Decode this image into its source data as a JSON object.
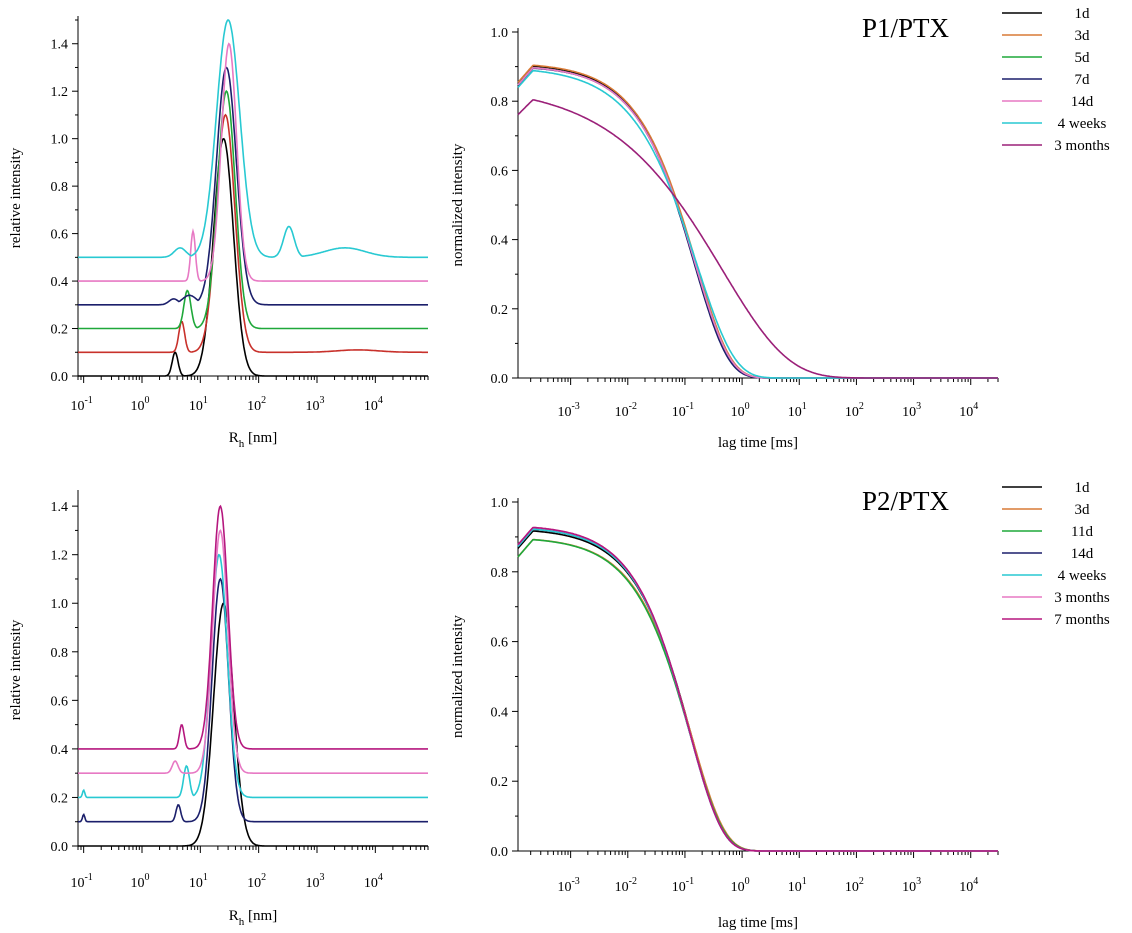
{
  "chart_data": [
    {
      "id": "p1-dist",
      "type": "line",
      "title": "",
      "xlabel": "R",
      "xlabel_sub": "h",
      "xlabel_unit": " [nm]",
      "ylabel": "relative intensity",
      "x_scale": "log",
      "xlim": [
        0.08,
        80000
      ],
      "ylim": [
        0,
        1.5
      ],
      "xticks": [
        {
          "base": "10",
          "exp": "-1"
        },
        {
          "base": "10",
          "exp": "0"
        },
        {
          "base": "10",
          "exp": "1"
        },
        {
          "base": "10",
          "exp": "2"
        },
        {
          "base": "10",
          "exp": "3"
        },
        {
          "base": "10",
          "exp": "4"
        }
      ],
      "yticks": [
        "0.0",
        "0.2",
        "0.4",
        "0.6",
        "0.8",
        "1.0",
        "1.2",
        "1.4"
      ],
      "series": [
        {
          "color": "#000000",
          "baseline": 0.0,
          "peaks": [
            {
              "x": 3.7,
              "w": 0.05,
              "h": 0.1
            },
            {
              "x": 25,
              "w": 0.17,
              "h": 1.0
            }
          ]
        },
        {
          "color": "#c8312b",
          "baseline": 0.1,
          "peaks": [
            {
              "x": 4.8,
              "w": 0.05,
              "h": 0.13
            },
            {
              "x": 27,
              "w": 0.16,
              "h": 1.0
            },
            {
              "x": 5000,
              "w": 0.35,
              "h": 0.01
            }
          ]
        },
        {
          "color": "#1fa83a",
          "baseline": 0.2,
          "peaks": [
            {
              "x": 6.0,
              "w": 0.06,
              "h": 0.16
            },
            {
              "x": 28,
              "w": 0.15,
              "h": 1.0
            }
          ]
        },
        {
          "color": "#1b1f6b",
          "baseline": 0.3,
          "peaks": [
            {
              "x": 3.5,
              "w": 0.08,
              "h": 0.025
            },
            {
              "x": 6.5,
              "w": 0.12,
              "h": 0.04
            },
            {
              "x": 28,
              "w": 0.17,
              "h": 1.0
            }
          ]
        },
        {
          "color": "#e779c4",
          "baseline": 0.4,
          "peaks": [
            {
              "x": 7.5,
              "w": 0.04,
              "h": 0.21
            },
            {
              "x": 31,
              "w": 0.13,
              "h": 1.0
            }
          ]
        },
        {
          "color": "#28c9d2",
          "baseline": 0.5,
          "peaks": [
            {
              "x": 4.5,
              "w": 0.1,
              "h": 0.04
            },
            {
              "x": 30,
              "w": 0.2,
              "h": 1.0
            },
            {
              "x": 330,
              "w": 0.09,
              "h": 0.13
            },
            {
              "x": 3000,
              "w": 0.35,
              "h": 0.04
            }
          ]
        }
      ]
    },
    {
      "id": "p1-corr",
      "type": "line",
      "title": "P1/PTX",
      "xlabel": "lag time [ms]",
      "ylabel": "normalized intensity",
      "x_scale": "log",
      "xlim": [
        0.00012,
        30000
      ],
      "ylim": [
        0,
        1.0
      ],
      "xticks": [
        {
          "base": "10",
          "exp": "-3"
        },
        {
          "base": "10",
          "exp": "-2"
        },
        {
          "base": "10",
          "exp": "-1"
        },
        {
          "base": "10",
          "exp": "0"
        },
        {
          "base": "10",
          "exp": "1"
        },
        {
          "base": "10",
          "exp": "2"
        },
        {
          "base": "10",
          "exp": "3"
        },
        {
          "base": "10",
          "exp": "4"
        }
      ],
      "yticks": [
        "0.0",
        "0.2",
        "0.4",
        "0.6",
        "0.8",
        "1.0"
      ],
      "legend": "top-right",
      "series": [
        {
          "name": "1d",
          "color": "#000000",
          "a": 0.91,
          "tau": 0.15,
          "beta": 0.72
        },
        {
          "name": "3d",
          "color": "#d87a36",
          "a": 0.912,
          "tau": 0.155,
          "beta": 0.72
        },
        {
          "name": "5d",
          "color": "#1fa83a",
          "a": 0.905,
          "tau": 0.15,
          "beta": 0.72
        },
        {
          "name": "7d",
          "color": "#1b1f6b",
          "a": 0.903,
          "tau": 0.145,
          "beta": 0.74
        },
        {
          "name": "14d",
          "color": "#e779c4",
          "a": 0.905,
          "tau": 0.15,
          "beta": 0.72
        },
        {
          "name": "4 weeks",
          "color": "#28c9d2",
          "a": 0.9,
          "tau": 0.16,
          "beta": 0.66
        },
        {
          "name": "3 months",
          "color": "#9b2079",
          "a": 0.85,
          "tau": 0.45,
          "beta": 0.38
        }
      ]
    },
    {
      "id": "p2-dist",
      "type": "line",
      "title": "",
      "xlabel": "R",
      "xlabel_sub": "h",
      "xlabel_unit": " [nm]",
      "ylabel": "relative intensity",
      "x_scale": "log",
      "xlim": [
        0.08,
        80000
      ],
      "ylim": [
        0,
        1.45
      ],
      "xticks": [
        {
          "base": "10",
          "exp": "-1"
        },
        {
          "base": "10",
          "exp": "0"
        },
        {
          "base": "10",
          "exp": "1"
        },
        {
          "base": "10",
          "exp": "2"
        },
        {
          "base": "10",
          "exp": "3"
        },
        {
          "base": "10",
          "exp": "4"
        }
      ],
      "yticks": [
        "0.0",
        "0.2",
        "0.4",
        "0.6",
        "0.8",
        "1.0",
        "1.2",
        "1.4"
      ],
      "series": [
        {
          "color": "#000000",
          "baseline": 0.0,
          "peaks": [
            {
              "x": 25,
              "w": 0.17,
              "h": 1.0
            }
          ]
        },
        {
          "color": "#1b1f6b",
          "baseline": 0.1,
          "peaks": [
            {
              "x": 0.1,
              "w": 0.02,
              "h": 0.03
            },
            {
              "x": 4.2,
              "w": 0.04,
              "h": 0.07
            },
            {
              "x": 22,
              "w": 0.14,
              "h": 1.0
            }
          ]
        },
        {
          "color": "#28c9d2",
          "baseline": 0.2,
          "peaks": [
            {
              "x": 0.1,
              "w": 0.02,
              "h": 0.03
            },
            {
              "x": 5.8,
              "w": 0.05,
              "h": 0.13
            },
            {
              "x": 21,
              "w": 0.14,
              "h": 1.0
            }
          ]
        },
        {
          "color": "#e779c4",
          "baseline": 0.3,
          "peaks": [
            {
              "x": 3.7,
              "w": 0.05,
              "h": 0.05
            },
            {
              "x": 22,
              "w": 0.13,
              "h": 1.0
            }
          ]
        },
        {
          "color": "#b5177e",
          "baseline": 0.4,
          "peaks": [
            {
              "x": 4.8,
              "w": 0.04,
              "h": 0.1
            },
            {
              "x": 22,
              "w": 0.13,
              "h": 1.0
            }
          ]
        }
      ]
    },
    {
      "id": "p2-corr",
      "type": "line",
      "title": "P2/PTX",
      "xlabel": "lag time [ms]",
      "ylabel": "normalized intensity",
      "x_scale": "log",
      "xlim": [
        0.00012,
        30000
      ],
      "ylim": [
        0,
        1.0
      ],
      "xticks": [
        {
          "base": "10",
          "exp": "-3"
        },
        {
          "base": "10",
          "exp": "-2"
        },
        {
          "base": "10",
          "exp": "-1"
        },
        {
          "base": "10",
          "exp": "0"
        },
        {
          "base": "10",
          "exp": "1"
        },
        {
          "base": "10",
          "exp": "2"
        },
        {
          "base": "10",
          "exp": "3"
        },
        {
          "base": "10",
          "exp": "4"
        }
      ],
      "yticks": [
        "0.0",
        "0.2",
        "0.4",
        "0.6",
        "0.8",
        "1.0"
      ],
      "legend": "top-right",
      "series": [
        {
          "name": "1d",
          "color": "#000000",
          "a": 0.925,
          "tau": 0.125,
          "beta": 0.75
        },
        {
          "name": "3d",
          "color": "#d87a36",
          "a": 0.9,
          "tau": 0.13,
          "beta": 0.75
        },
        {
          "name": "11d",
          "color": "#1fa83a",
          "a": 0.9,
          "tau": 0.125,
          "beta": 0.75
        },
        {
          "name": "14d",
          "color": "#1b1f6b",
          "a": 0.93,
          "tau": 0.12,
          "beta": 0.76
        },
        {
          "name": "4 weeks",
          "color": "#28c9d2",
          "a": 0.93,
          "tau": 0.12,
          "beta": 0.76
        },
        {
          "name": "3 months",
          "color": "#e779c4",
          "a": 0.935,
          "tau": 0.12,
          "beta": 0.76
        },
        {
          "name": "7 months",
          "color": "#b5177e",
          "a": 0.935,
          "tau": 0.12,
          "beta": 0.76
        }
      ]
    }
  ]
}
